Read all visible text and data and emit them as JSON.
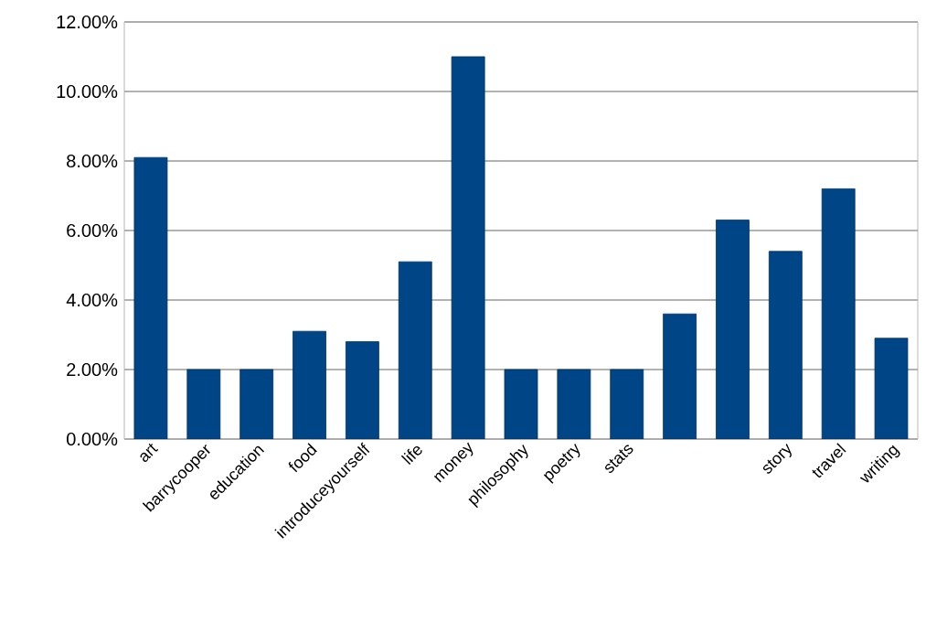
{
  "chart_data": {
    "type": "bar",
    "categories": [
      "art",
      "barrycooper",
      "education",
      "food",
      "introduceyourself",
      "life",
      "money",
      "philosophy",
      "poetry",
      "stats",
      null,
      null,
      "story",
      "travel",
      "writing"
    ],
    "values": [
      8.1,
      2.0,
      2.0,
      3.1,
      2.8,
      5.1,
      11.0,
      2.0,
      2.0,
      2.0,
      3.6,
      6.3,
      5.4,
      7.2,
      2.9
    ],
    "color": "#004586",
    "ylim": [
      0,
      12
    ],
    "yticks": [
      {
        "value": 0,
        "label": "0.00%"
      },
      {
        "value": 2,
        "label": "2.00%"
      },
      {
        "value": 4,
        "label": "4.00%"
      },
      {
        "value": 6,
        "label": "6.00%"
      },
      {
        "value": 8,
        "label": "8.00%"
      },
      {
        "value": 10,
        "label": "10.00%"
      },
      {
        "value": 12,
        "label": "12.00%"
      }
    ],
    "grid": true
  }
}
